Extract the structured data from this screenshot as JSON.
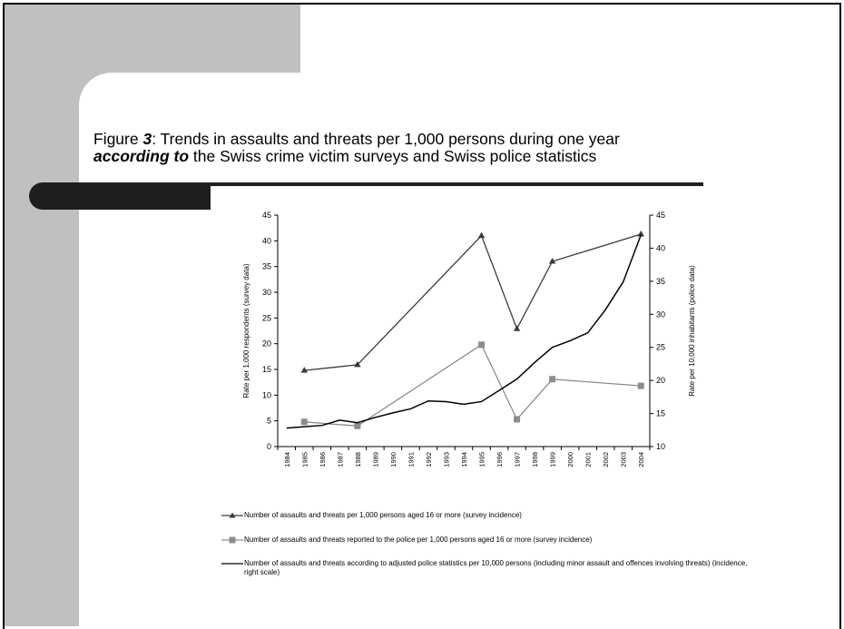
{
  "slide": {
    "title_line1_prefix": "Figure ",
    "title_line1_num": "3",
    "title_line1_rest": ": Trends in assaults and threats per 1,000 persons during one year",
    "title_line2_em": "according to",
    "title_line2_rest": " the Swiss crime victim surveys and Swiss police statistics"
  },
  "chart_data": {
    "type": "line",
    "title": "",
    "x": [
      "1984",
      "1985",
      "1986",
      "1987",
      "1988",
      "1989",
      "1990",
      "1991",
      "1992",
      "1993",
      "1994",
      "1995",
      "1996",
      "1997",
      "1998",
      "1999",
      "2000",
      "2001",
      "2002",
      "2003",
      "2004"
    ],
    "ylabel_left": "Rate per 1,000 respondents (survey data)",
    "ylabel_right": "Rate per 10,000 inhabitants (police data)",
    "ylim_left": [
      0,
      45
    ],
    "ylim_right": [
      10,
      45
    ],
    "yticks_left": [
      0,
      5,
      10,
      15,
      20,
      25,
      30,
      35,
      40,
      45
    ],
    "yticks_right": [
      10,
      15,
      20,
      25,
      30,
      35,
      40,
      45
    ],
    "grid": false,
    "legend_position": "bottom",
    "series": [
      {
        "name": "Number of assaults and threats per 1,000 persons aged 16 or more (survey incidence)",
        "axis": "left",
        "marker": "triangle",
        "color": "#3a3a3a",
        "points": [
          [
            "1985",
            14.8
          ],
          [
            "1988",
            15.9
          ],
          [
            "1995",
            41.0
          ],
          [
            "1997",
            22.9
          ],
          [
            "1999",
            36.0
          ],
          [
            "2004",
            41.3
          ]
        ]
      },
      {
        "name": "Number of assaults and threats reported to the police per 1,000 persons aged 16 or more (survey incidence)",
        "axis": "left",
        "marker": "square",
        "color": "#8c8c8c",
        "points": [
          [
            "1985",
            4.8
          ],
          [
            "1988",
            4.0
          ],
          [
            "1995",
            19.8
          ],
          [
            "1997",
            5.3
          ],
          [
            "1999",
            13.1
          ],
          [
            "2004",
            11.8
          ]
        ]
      },
      {
        "name": "Number of assaults and threats according to adjusted police statistics per 10,000 persons (including minor assault and offences involving threats) (incidence, right scale)",
        "axis": "right",
        "marker": "none",
        "color": "#000000",
        "points": [
          [
            "1984",
            12.8
          ],
          [
            "1985",
            13.0
          ],
          [
            "1986",
            13.2
          ],
          [
            "1987",
            14.0
          ],
          [
            "1988",
            13.6
          ],
          [
            "1989",
            14.4
          ],
          [
            "1990",
            15.1
          ],
          [
            "1991",
            15.7
          ],
          [
            "1992",
            16.9
          ],
          [
            "1993",
            16.8
          ],
          [
            "1994",
            16.4
          ],
          [
            "1995",
            16.8
          ],
          [
            "1996",
            18.5
          ],
          [
            "1997",
            20.2
          ],
          [
            "1998",
            22.7
          ],
          [
            "1999",
            25.0
          ],
          [
            "2000",
            26.0
          ],
          [
            "2001",
            27.2
          ],
          [
            "2002",
            30.7
          ],
          [
            "2003",
            34.9
          ],
          [
            "2004",
            42.0
          ]
        ]
      }
    ]
  }
}
